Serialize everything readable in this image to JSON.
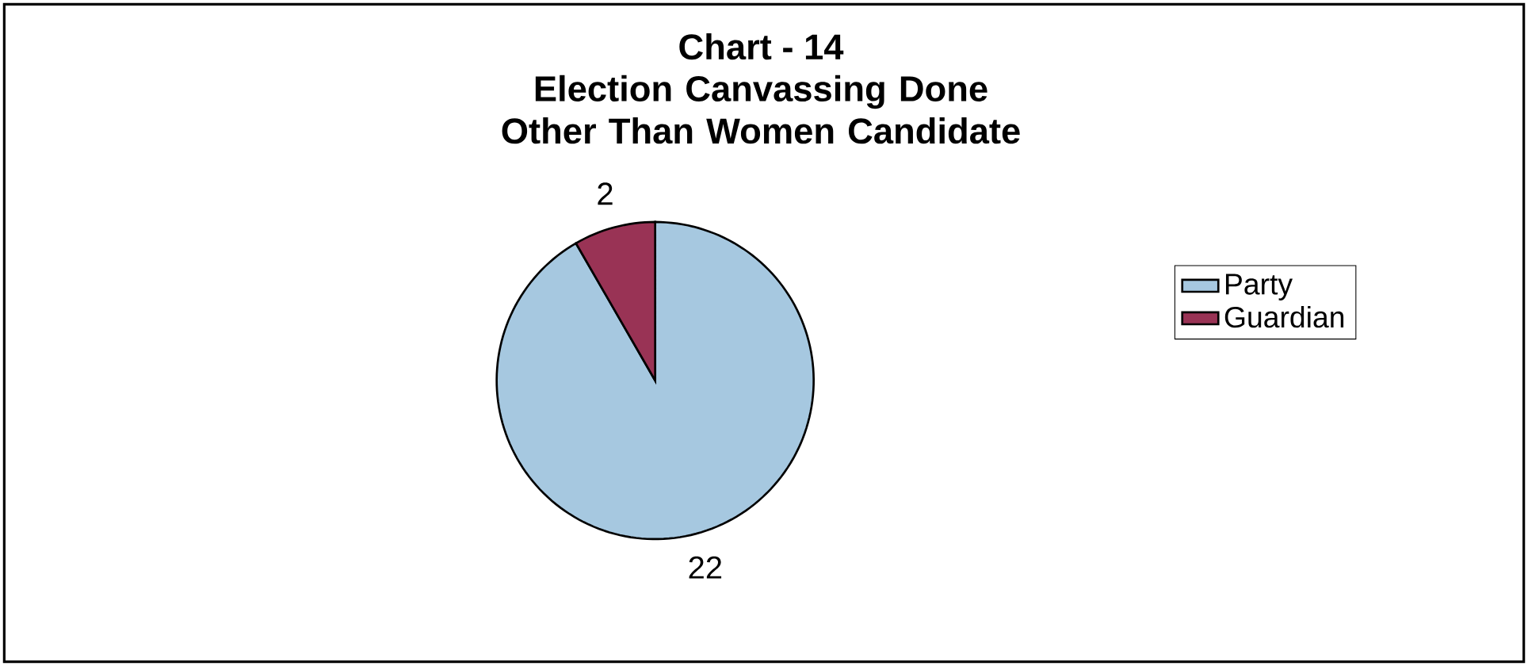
{
  "chart_data": {
    "type": "pie",
    "title": "Chart - 14",
    "subtitle": "Election Canvassing Done Other Than Women Candidate",
    "categories": [
      "Party",
      "Guardian"
    ],
    "values": [
      22,
      2
    ],
    "colors": [
      "#a6c8e0",
      "#993355"
    ],
    "data_labels": true,
    "legend": "right"
  }
}
